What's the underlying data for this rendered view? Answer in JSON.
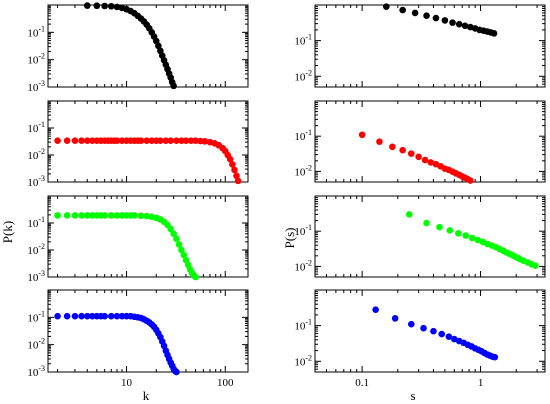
{
  "chart_data": {
    "type": "scatter",
    "left_column": {
      "xlabel": "k",
      "ylabel": "P(k)",
      "xscale": "log",
      "yscale": "log",
      "xlim": [
        1.6,
        170
      ],
      "ylim": [
        0.001,
        1
      ],
      "x_tick_labels": [
        "10",
        "100"
      ],
      "y_tick_labels": [
        "10^-1",
        "10^-2",
        "10^-3"
      ]
    },
    "right_column": {
      "xlabel": "s",
      "ylabel": "P(s)",
      "xscale": "log",
      "yscale": "log",
      "xlim": [
        0.04,
        3.5
      ],
      "ylim": [
        0.005,
        1
      ],
      "x_tick_labels": [
        "0.1",
        "1"
      ],
      "y_tick_labels": [
        "10^-1",
        "10^-2"
      ]
    },
    "panels": [
      {
        "column": "left",
        "row": 0,
        "color": "#000000",
        "x": [
          4,
          5,
          6,
          7,
          8,
          9,
          10,
          11,
          12,
          13,
          14,
          15,
          16,
          17,
          18,
          19,
          20,
          21,
          22,
          23,
          24,
          25,
          26,
          27,
          28,
          29,
          30
        ],
        "y": [
          0.95,
          0.94,
          0.92,
          0.9,
          0.85,
          0.78,
          0.7,
          0.6,
          0.5,
          0.4,
          0.32,
          0.25,
          0.19,
          0.14,
          0.1,
          0.07,
          0.048,
          0.032,
          0.021,
          0.014,
          0.0095,
          0.0065,
          0.0045,
          0.0031,
          0.0022,
          0.0015,
          0.0011
        ]
      },
      {
        "column": "left",
        "row": 1,
        "color": "#ff0000",
        "x": [
          2,
          2.5,
          3,
          3.5,
          4,
          4.5,
          5,
          5.5,
          6,
          6.5,
          7,
          7.5,
          8,
          9,
          10,
          11,
          12,
          13,
          14,
          16,
          18,
          20,
          22,
          25,
          28,
          32,
          36,
          40,
          45,
          50,
          56,
          62,
          70,
          78,
          86,
          94,
          100,
          106,
          112,
          118,
          124,
          130,
          135
        ],
        "y": [
          0.034,
          0.034,
          0.034,
          0.034,
          0.034,
          0.034,
          0.034,
          0.034,
          0.034,
          0.034,
          0.034,
          0.034,
          0.034,
          0.034,
          0.034,
          0.034,
          0.034,
          0.034,
          0.034,
          0.034,
          0.034,
          0.034,
          0.034,
          0.034,
          0.034,
          0.034,
          0.034,
          0.034,
          0.034,
          0.034,
          0.033,
          0.032,
          0.03,
          0.027,
          0.023,
          0.018,
          0.014,
          0.01,
          0.007,
          0.0045,
          0.0028,
          0.0017,
          0.0011
        ]
      },
      {
        "column": "left",
        "row": 2,
        "color": "#00ff00",
        "x": [
          2,
          2.5,
          3,
          3.5,
          4,
          4.5,
          5,
          5.5,
          6,
          7,
          8,
          9,
          10,
          11,
          12,
          14,
          16,
          18,
          20,
          22,
          24,
          26,
          28,
          30,
          32,
          34,
          36,
          38,
          40,
          42,
          44,
          46,
          48,
          50
        ],
        "y": [
          0.19,
          0.19,
          0.19,
          0.19,
          0.19,
          0.19,
          0.19,
          0.19,
          0.19,
          0.19,
          0.19,
          0.19,
          0.19,
          0.19,
          0.19,
          0.185,
          0.18,
          0.17,
          0.155,
          0.135,
          0.11,
          0.085,
          0.06,
          0.04,
          0.026,
          0.016,
          0.01,
          0.0065,
          0.0042,
          0.0028,
          0.0019,
          0.0014,
          0.00115,
          0.001
        ]
      },
      {
        "column": "left",
        "row": 3,
        "color": "#0000ff",
        "x": [
          2,
          2.5,
          3,
          3.5,
          4,
          4.5,
          5,
          5.5,
          6,
          7,
          8,
          9,
          10,
          11,
          12,
          13,
          14,
          15,
          16,
          17,
          18,
          19,
          20,
          21,
          22,
          23,
          24,
          25,
          26,
          27,
          28,
          29,
          30,
          31,
          32
        ],
        "y": [
          0.11,
          0.11,
          0.11,
          0.11,
          0.11,
          0.11,
          0.11,
          0.11,
          0.11,
          0.11,
          0.11,
          0.11,
          0.11,
          0.11,
          0.105,
          0.1,
          0.095,
          0.085,
          0.075,
          0.065,
          0.055,
          0.045,
          0.035,
          0.026,
          0.019,
          0.013,
          0.009,
          0.006,
          0.0042,
          0.003,
          0.0022,
          0.0017,
          0.0013,
          0.0011,
          0.001
        ]
      },
      {
        "column": "right",
        "row": 0,
        "color": "#000000",
        "x": [
          0.16,
          0.22,
          0.28,
          0.35,
          0.42,
          0.5,
          0.58,
          0.66,
          0.74,
          0.82,
          0.9,
          0.98,
          1.06,
          1.14,
          1.22,
          1.3
        ],
        "y": [
          0.9,
          0.72,
          0.6,
          0.5,
          0.43,
          0.37,
          0.32,
          0.29,
          0.26,
          0.24,
          0.22,
          0.2,
          0.19,
          0.18,
          0.17,
          0.16
        ]
      },
      {
        "column": "right",
        "row": 1,
        "color": "#ff0000",
        "x": [
          0.1,
          0.14,
          0.18,
          0.22,
          0.26,
          0.3,
          0.34,
          0.38,
          0.42,
          0.46,
          0.5,
          0.54,
          0.58,
          0.62,
          0.66,
          0.7,
          0.74,
          0.78,
          0.82
        ],
        "y": [
          0.11,
          0.07,
          0.05,
          0.04,
          0.032,
          0.026,
          0.021,
          0.018,
          0.016,
          0.014,
          0.012,
          0.011,
          0.0098,
          0.0088,
          0.008,
          0.0072,
          0.0066,
          0.006,
          0.0055
        ]
      },
      {
        "column": "right",
        "row": 2,
        "color": "#00ff00",
        "x": [
          0.25,
          0.35,
          0.45,
          0.55,
          0.65,
          0.75,
          0.85,
          0.95,
          1.05,
          1.15,
          1.25,
          1.35,
          1.45,
          1.55,
          1.65,
          1.75,
          1.85,
          1.95,
          2.05,
          2.15,
          2.3,
          2.5,
          2.7,
          2.9
        ],
        "y": [
          0.3,
          0.17,
          0.13,
          0.105,
          0.087,
          0.075,
          0.064,
          0.056,
          0.049,
          0.043,
          0.039,
          0.035,
          0.031,
          0.028,
          0.025,
          0.023,
          0.021,
          0.019,
          0.0175,
          0.016,
          0.0145,
          0.013,
          0.0115,
          0.0105
        ]
      },
      {
        "column": "right",
        "row": 3,
        "color": "#0000ff",
        "x": [
          0.13,
          0.19,
          0.26,
          0.33,
          0.4,
          0.47,
          0.54,
          0.6,
          0.66,
          0.72,
          0.78,
          0.84,
          0.9,
          0.96,
          1.02,
          1.08,
          1.14,
          1.2,
          1.26,
          1.32
        ],
        "y": [
          0.28,
          0.16,
          0.11,
          0.085,
          0.07,
          0.058,
          0.049,
          0.042,
          0.037,
          0.033,
          0.029,
          0.026,
          0.023,
          0.021,
          0.019,
          0.017,
          0.0155,
          0.0145,
          0.0135,
          0.013
        ]
      }
    ]
  }
}
